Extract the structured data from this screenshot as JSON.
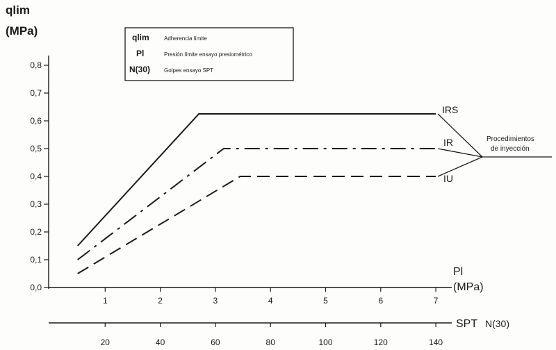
{
  "chart_data": {
    "type": "line",
    "ylabel_line1": "qlim",
    "ylabel_line2": "(MPa)",
    "xlabel_line1": "Pl",
    "xlabel_line2": "(MPa)",
    "x2label_prefix": "SPT",
    "x2label_suffix": "N(30)",
    "ylim": [
      0,
      0.85
    ],
    "xlim": [
      0.8,
      7.2
    ],
    "y_ticks": [
      "0,0",
      "0,1",
      "0,2",
      "0,3",
      "0,4",
      "0,5",
      "0,6",
      "0,7",
      "0,8"
    ],
    "x_ticks": [
      "1",
      "2",
      "3",
      "4",
      "5",
      "6",
      "7"
    ],
    "x2_ticks": [
      "20",
      "40",
      "60",
      "80",
      "100",
      "120",
      "140"
    ],
    "series": [
      {
        "name": "IRS",
        "style": "solid",
        "x": [
          0.5,
          2.7,
          7.0
        ],
        "y": [
          0.15,
          0.625,
          0.625
        ]
      },
      {
        "name": "IR",
        "style": "dashdot",
        "x": [
          0.5,
          3.15,
          7.0
        ],
        "y": [
          0.1,
          0.5,
          0.5
        ]
      },
      {
        "name": "IU",
        "style": "dashed",
        "x": [
          0.5,
          3.45,
          7.0
        ],
        "y": [
          0.05,
          0.4,
          0.4
        ]
      }
    ],
    "annotation": {
      "line1": "Procedimientos",
      "line2": "de inyección"
    },
    "legend": {
      "position": "top-left",
      "items": [
        {
          "symbol": "qlim",
          "text": "Adherencia límite"
        },
        {
          "symbol": "Pl",
          "text": "Presión límite ensayo presiométrico"
        },
        {
          "symbol": "N(30)",
          "text": "Golpes ensayo SPT"
        }
      ]
    }
  },
  "colors": {
    "ink": "#1a1a1a",
    "background": "#fdfdfb"
  }
}
